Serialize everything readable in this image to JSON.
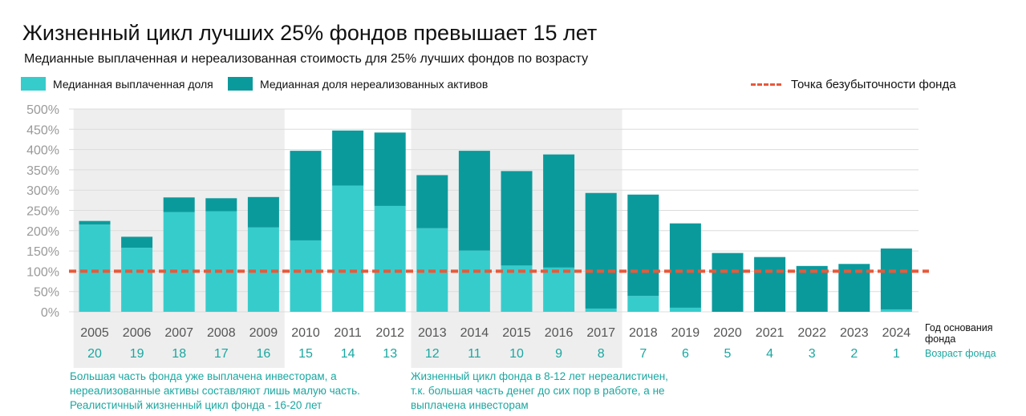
{
  "title": "Жизненный цикл лучших 25% фондов превышает 15 лет",
  "subtitle": "Медианные выплаченная и нереализованная стоимость для 25% лучших фондов по возрасту",
  "legend": {
    "paid": "Медианная выплаченная доля",
    "unrealized": "Медианная доля нереализованных активов",
    "breakeven": "Точка безубыточности фонда"
  },
  "colors": {
    "paid": "#37cccc",
    "unrealized": "#0b9a9c",
    "breakeven": "#e8593a",
    "shade": "#eeeeee",
    "age_text": "#1aa7a0",
    "tick_text": "#9a9a9a",
    "year_text": "#555555"
  },
  "axis_side": {
    "year_label_line1": "Год основания",
    "year_label_line2": "фонда",
    "age_label": "Возраст фонда"
  },
  "notes": {
    "left": [
      "Большая часть фонда уже выплачена инвесторам, а",
      "нереализованные активы составляют лишь малую часть.",
      "Реалистичный жизненный цикл фонда - 16-20 лет"
    ],
    "right": [
      "Жизненный цикл фонда в 8-12 лет нереалистичен,",
      "т.к. большая часть денег до сих пор в работе, а не",
      "выплачена инвесторам"
    ]
  },
  "chart_data": {
    "type": "bar",
    "stacked": true,
    "categories": [
      "2005",
      "2006",
      "2007",
      "2008",
      "2009",
      "2010",
      "2011",
      "2012",
      "2013",
      "2014",
      "2015",
      "2016",
      "2017",
      "2018",
      "2019",
      "2020",
      "2021",
      "2022",
      "2023",
      "2024"
    ],
    "ages": [
      "20",
      "19",
      "18",
      "17",
      "16",
      "15",
      "14",
      "13",
      "12",
      "11",
      "10",
      "9",
      "8",
      "7",
      "6",
      "5",
      "4",
      "3",
      "2",
      "1"
    ],
    "series": [
      {
        "name": "Медианная выплаченная доля",
        "values": [
          215,
          158,
          246,
          248,
          208,
          176,
          311,
          261,
          206,
          151,
          114,
          109,
          8,
          39,
          10,
          0,
          0,
          0,
          0,
          6
        ]
      },
      {
        "name": "Медианная доля нереализованных активов",
        "values": [
          9,
          27,
          36,
          32,
          75,
          221,
          136,
          181,
          131,
          246,
          233,
          279,
          285,
          250,
          208,
          145,
          135,
          113,
          118,
          150
        ]
      }
    ],
    "breakeven": 100,
    "ylim": [
      0,
      500
    ],
    "yticks": [
      "0%",
      "50%",
      "100%",
      "150%",
      "200%",
      "250%",
      "300%",
      "350%",
      "400%",
      "450%",
      "500%"
    ],
    "shaded_ranges": [
      [
        "2005",
        "2009"
      ],
      [
        "2013",
        "2017"
      ]
    ],
    "grid": true,
    "legend_position": "top"
  }
}
